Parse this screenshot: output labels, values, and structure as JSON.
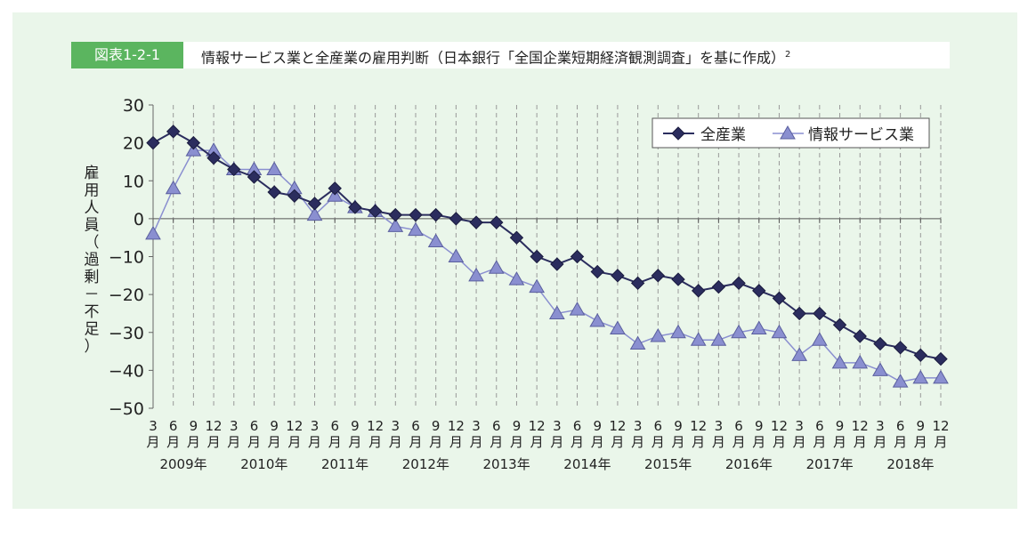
{
  "figure_label": "図表1-2-1",
  "title": "情報サービス業と全産業の雇用判断（日本銀行「全国企業短期経済観測調査」を基に作成）",
  "footnote_ref": "2",
  "chart_data": {
    "type": "line",
    "title": "情報サービス業と全産業の雇用判断",
    "ylabel": "雇用人員（過剰－不足）",
    "xlabel": "",
    "ylim": [
      -50,
      30
    ],
    "yticks": [
      30,
      20,
      10,
      0,
      -10,
      -20,
      -30,
      -40,
      -50
    ],
    "month_labels": [
      "3",
      "6",
      "9",
      "12"
    ],
    "month_suffix": "月",
    "years": [
      "2009年",
      "2010年",
      "2011年",
      "2012年",
      "2013年",
      "2014年",
      "2015年",
      "2016年",
      "2017年",
      "2018年"
    ],
    "legend_position": "top-right",
    "series": [
      {
        "name": "全産業",
        "marker": "diamond",
        "color": "#2b2d5e",
        "values": [
          20,
          23,
          20,
          16,
          13,
          11,
          7,
          6,
          4,
          8,
          3,
          2,
          1,
          1,
          1,
          0,
          -1,
          -1,
          -5,
          -10,
          -12,
          -10,
          -14,
          -15,
          -17,
          -15,
          -16,
          -19,
          -18,
          -17,
          -19,
          -21,
          -25,
          -25,
          -28,
          -31,
          -33,
          -34,
          -36,
          -37
        ]
      },
      {
        "name": "情報サービス業",
        "marker": "triangle",
        "color": "#8a8fd0",
        "values": [
          -4,
          8,
          18,
          18,
          13,
          13,
          13,
          8,
          1,
          6,
          3,
          2,
          -2,
          -3,
          -6,
          -10,
          -15,
          -13,
          -16,
          -18,
          -25,
          -24,
          -27,
          -29,
          -33,
          -31,
          -30,
          -32,
          -32,
          -30,
          -29,
          -30,
          -36,
          -32,
          -38,
          -38,
          -40,
          -43,
          -42,
          -42
        ]
      }
    ]
  }
}
